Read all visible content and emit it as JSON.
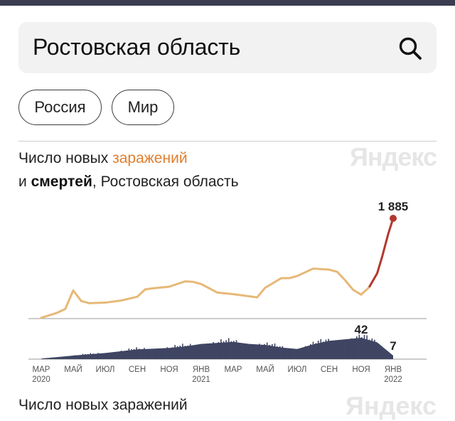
{
  "search": {
    "value": "Ростовская область"
  },
  "chips": [
    {
      "label": "Россия"
    },
    {
      "label": "Мир"
    }
  ],
  "chart_header": {
    "line1_prefix": "Число новых ",
    "line1_highlight": "заражений",
    "line2_prefix": "и ",
    "line2_bold": "смертей",
    "line2_suffix": ", Ростовская область"
  },
  "brand": "Яндекс",
  "colors": {
    "infections": "#e7b877",
    "infections_peak": "#b2382e",
    "deaths": "#3f4562",
    "axis": "#555555"
  },
  "chart_data": {
    "type": "line",
    "x_ticks": [
      {
        "month": "МАР",
        "year": "2020"
      },
      {
        "month": "МАЙ",
        "year": ""
      },
      {
        "month": "ИЮЛ",
        "year": ""
      },
      {
        "month": "СЕН",
        "year": ""
      },
      {
        "month": "НОЯ",
        "year": ""
      },
      {
        "month": "ЯНВ",
        "year": "2021"
      },
      {
        "month": "МАР",
        "year": ""
      },
      {
        "month": "МАЙ",
        "year": ""
      },
      {
        "month": "ИЮЛ",
        "year": ""
      },
      {
        "month": "СЕН",
        "year": ""
      },
      {
        "month": "НОЯ",
        "year": ""
      },
      {
        "month": "ЯНВ",
        "year": "2022"
      }
    ],
    "infections": {
      "months": [
        0,
        1,
        1.5,
        2,
        2.5,
        3,
        4,
        5,
        6,
        6.5,
        7,
        8,
        9,
        9.5,
        10,
        11,
        12,
        13,
        13.5,
        14,
        15,
        15.5,
        16,
        17,
        18,
        18.5,
        19,
        19.5,
        20,
        20.5,
        21,
        21.3,
        21.7,
        22
      ],
      "values": [
        15,
        110,
        180,
        530,
        330,
        290,
        300,
        340,
        410,
        550,
        570,
        600,
        700,
        690,
        650,
        490,
        460,
        420,
        400,
        580,
        760,
        760,
        800,
        940,
        920,
        880,
        720,
        540,
        450,
        590,
        850,
        1150,
        1600,
        1885
      ],
      "last_label": "1 885"
    },
    "deaths": {
      "months": [
        0,
        2,
        4,
        6,
        8,
        9,
        10,
        12,
        13,
        14,
        15,
        16,
        17,
        18,
        19,
        20,
        21,
        22
      ],
      "values": [
        1,
        7,
        12,
        19,
        22,
        25,
        30,
        34,
        30,
        28,
        23,
        20,
        29,
        36,
        39,
        42,
        33,
        7
      ],
      "peak_label": "42",
      "last_label": "7"
    }
  }
}
